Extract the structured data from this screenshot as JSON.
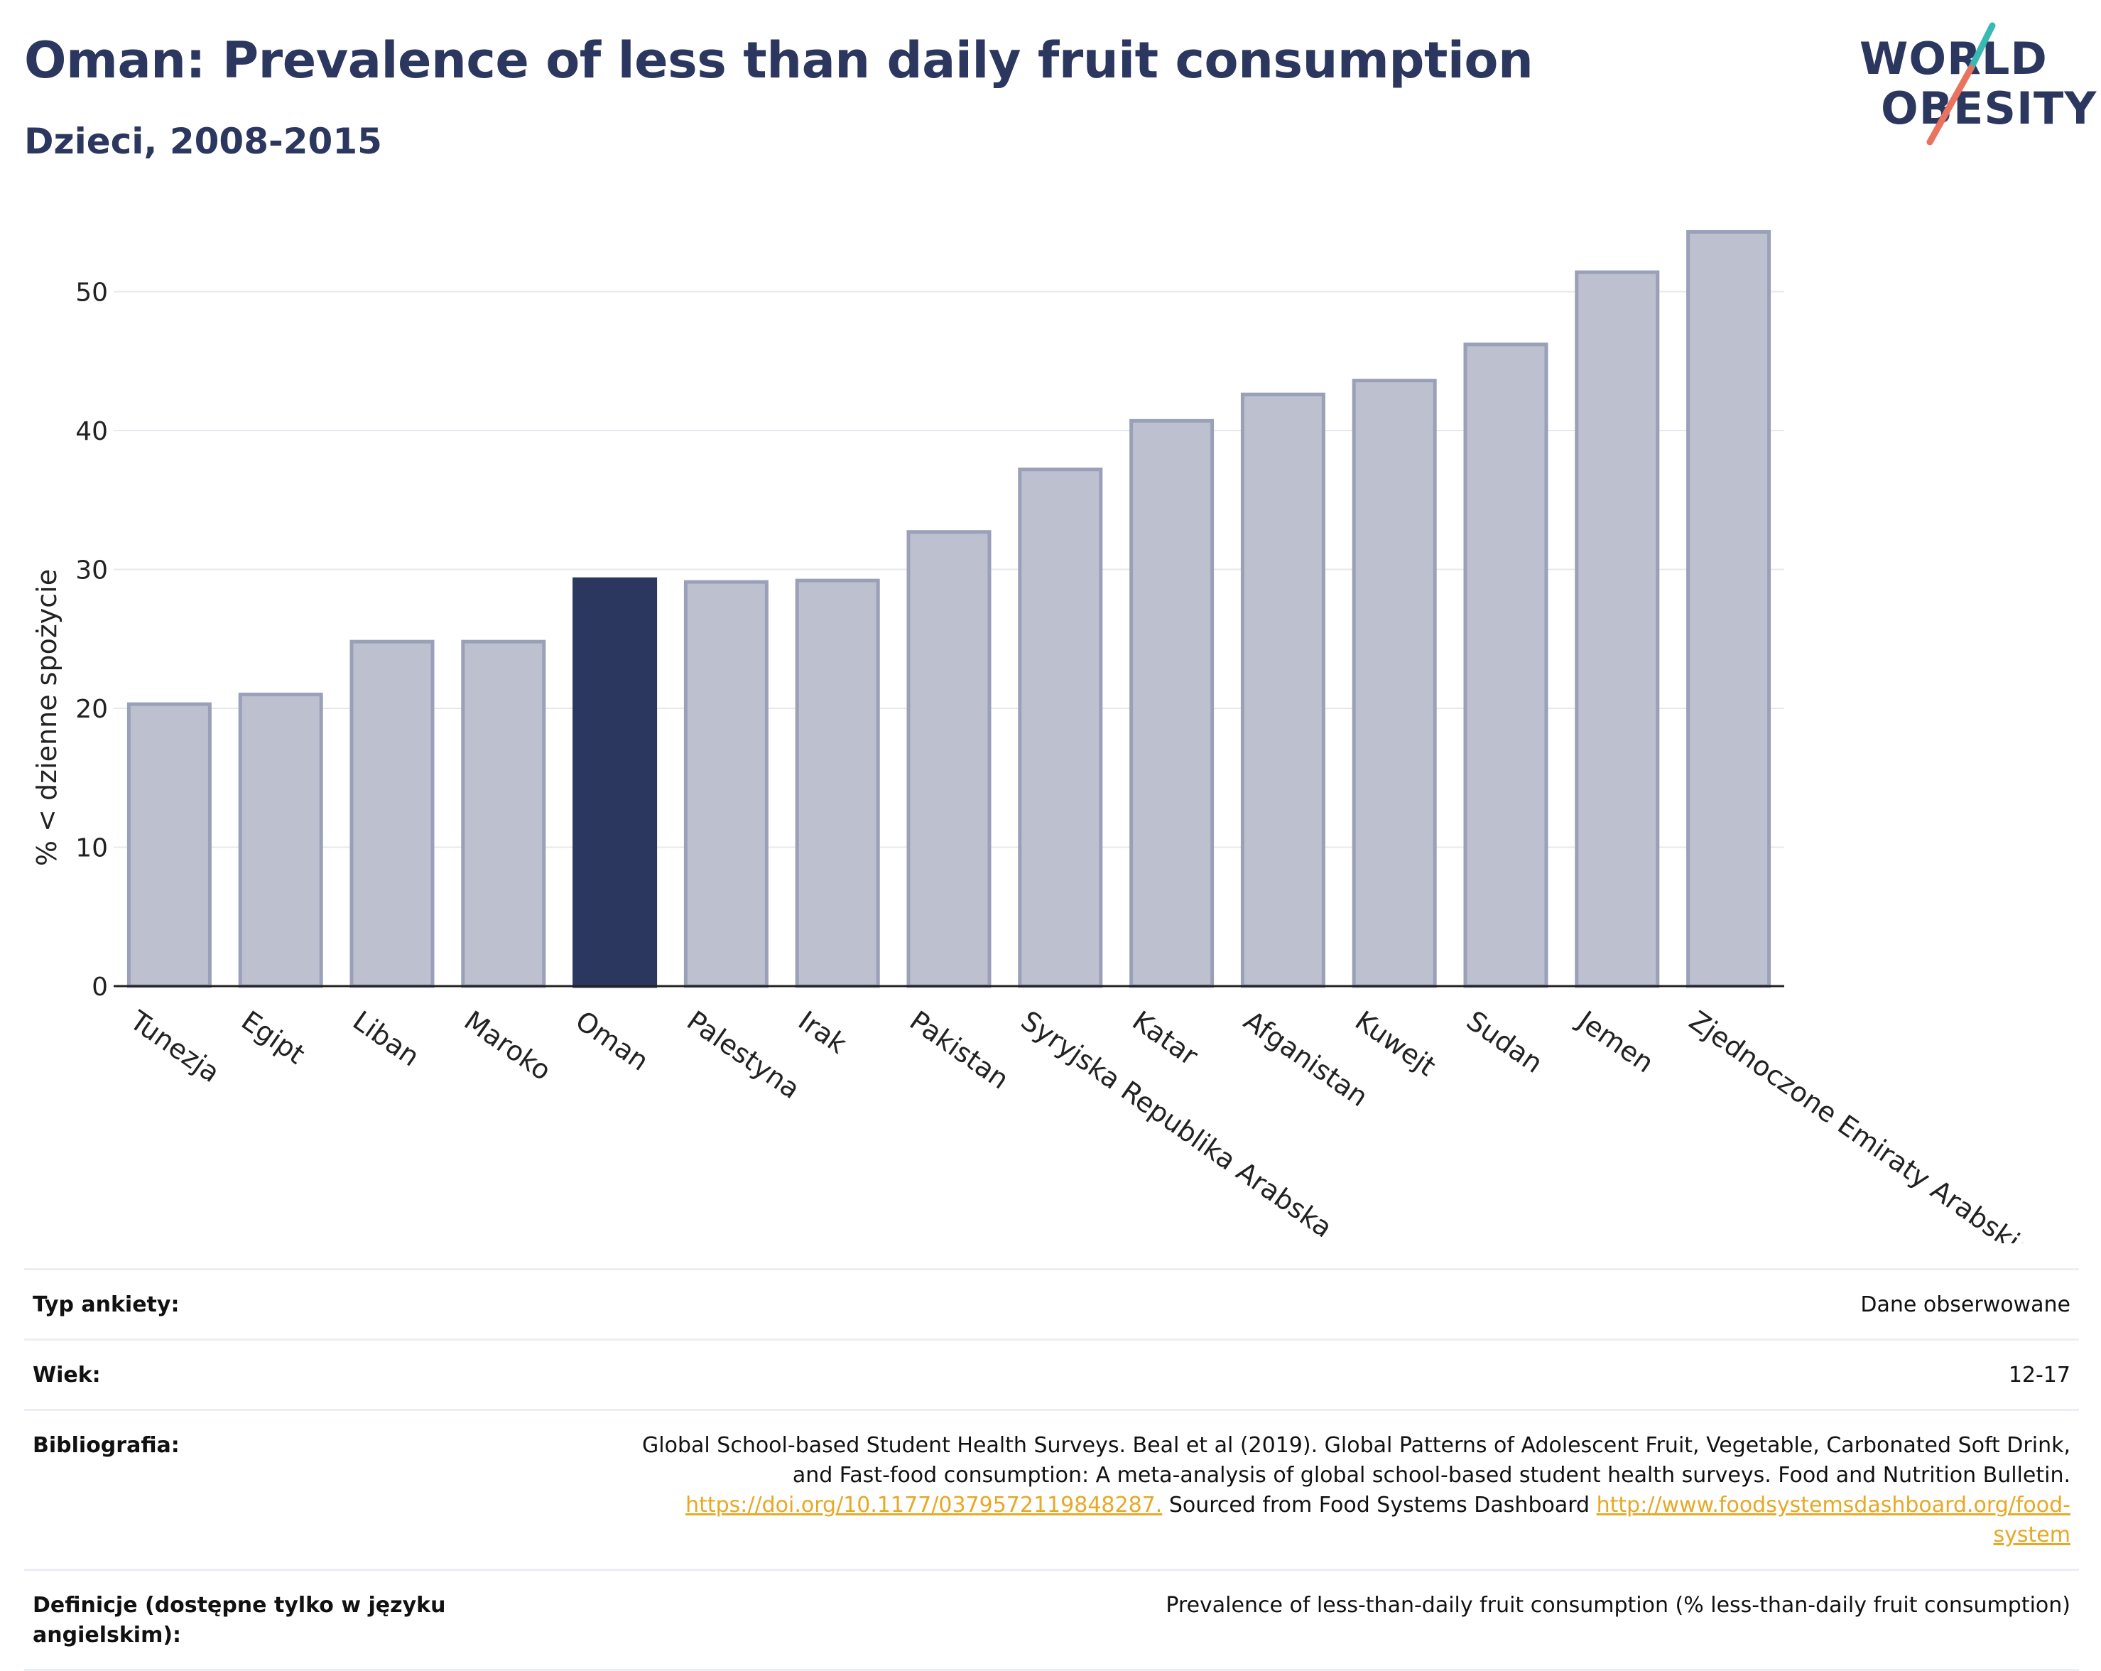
{
  "header": {
    "title": "Oman: Prevalence of less than daily fruit consumption",
    "subtitle": "Dzieci, 2008-2015",
    "logo_line1": "WORLD",
    "logo_line2": "OBESITY"
  },
  "colors": {
    "highlight": "#2c375f",
    "bar": "#bcc0cf",
    "bar_edge": "#9aa0b8",
    "text": "#2c375f",
    "link": "#e8a824",
    "logo_teal": "#39b9b4",
    "logo_coral": "#e9735f"
  },
  "chart_data": {
    "type": "bar",
    "ylabel": "% < dzienne spożycie",
    "ylim": [
      0,
      55
    ],
    "yticks": [
      0,
      10,
      20,
      30,
      40,
      50
    ],
    "grid": true,
    "highlight": "Oman",
    "categories": [
      "Tunezja",
      "Egipt",
      "Liban",
      "Maroko",
      "Oman",
      "Palestyna",
      "Irak",
      "Pakistan",
      "Syryjska Republika Arabska",
      "Katar",
      "Afganistan",
      "Kuwejt",
      "Sudan",
      "Jemen",
      "Zjednoczone Emiraty Arabskie"
    ],
    "values": [
      20.3,
      21.0,
      24.8,
      24.8,
      29.3,
      29.1,
      29.2,
      32.7,
      37.2,
      40.7,
      42.6,
      43.6,
      46.2,
      51.4,
      54.3
    ]
  },
  "meta": {
    "survey_type_label": "Typ ankiety:",
    "survey_type_value": "Dane obserwowane",
    "age_label": "Wiek:",
    "age_value": "12-17",
    "bibliography_label": "Bibliografia:",
    "bibliography_text1": "Global School-based Student Health Surveys. Beal et al (2019). Global Patterns of Adolescent Fruit, Vegetable, Carbonated Soft Drink,",
    "bibliography_text2": "and Fast-food consumption: A meta-analysis of global school-based student health surveys. Food and Nutrition Bulletin.",
    "bibliography_link1": "https://doi.org/10.1177/0379572119848287.",
    "bibliography_text3": " Sourced from Food Systems Dashboard ",
    "bibliography_link2a": "http://www.foodsystemsdashboard.org/food-",
    "bibliography_link2b": "system",
    "definition_label": "Definicje (dostępne tylko w języku angielskim):",
    "definition_value": "Prevalence of less-than-daily fruit consumption (% less-than-daily fruit consumption)"
  }
}
